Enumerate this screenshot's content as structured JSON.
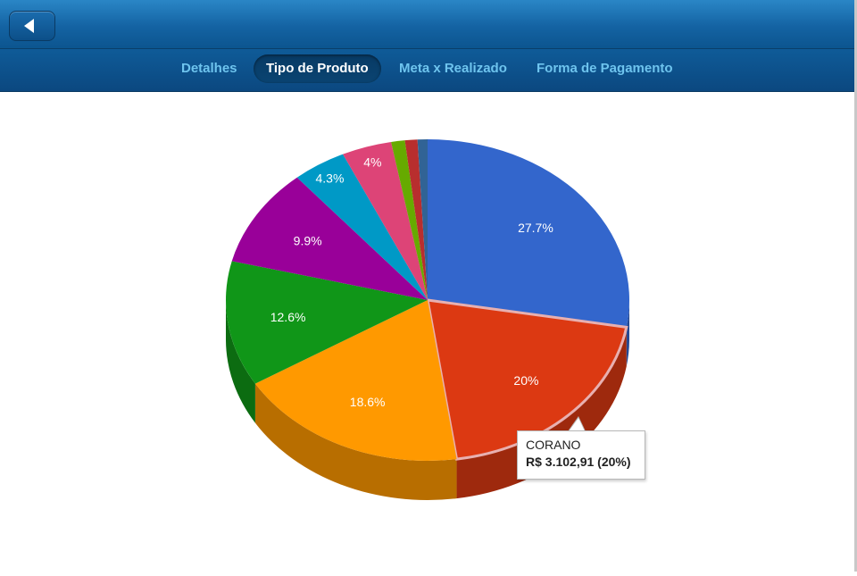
{
  "header": {
    "back_label": "back",
    "title": ""
  },
  "tabs": [
    {
      "label": "Detalhes",
      "active": false
    },
    {
      "label": "Tipo de Produto",
      "active": true
    },
    {
      "label": "Meta x Realizado",
      "active": false
    },
    {
      "label": "Forma de Pagamento",
      "active": false
    }
  ],
  "chart_data": {
    "type": "pie",
    "is_3d": true,
    "slices": [
      {
        "percent": 27.7,
        "label": "27.7%",
        "color": "#3366cc"
      },
      {
        "percent": 20.0,
        "label": "20%",
        "color": "#dc3912"
      },
      {
        "percent": 18.6,
        "label": "18.6%",
        "color": "#ff9900"
      },
      {
        "percent": 12.6,
        "label": "12.6%",
        "color": "#109618"
      },
      {
        "percent": 9.9,
        "label": "9.9%",
        "color": "#990099"
      },
      {
        "percent": 4.3,
        "label": "4.3%",
        "color": "#0099c6"
      },
      {
        "percent": 4.0,
        "label": "4%",
        "color": "#dd4477"
      },
      {
        "percent": 1.1,
        "label": "",
        "color": "#66aa00"
      },
      {
        "percent": 1.0,
        "label": "",
        "color": "#b82e2e"
      },
      {
        "percent": 0.8,
        "label": "",
        "color": "#316395"
      }
    ],
    "tooltip": {
      "slice_index": 1,
      "name": "CORANO",
      "value_text": "R$ 3.102,91 (20%)"
    }
  }
}
